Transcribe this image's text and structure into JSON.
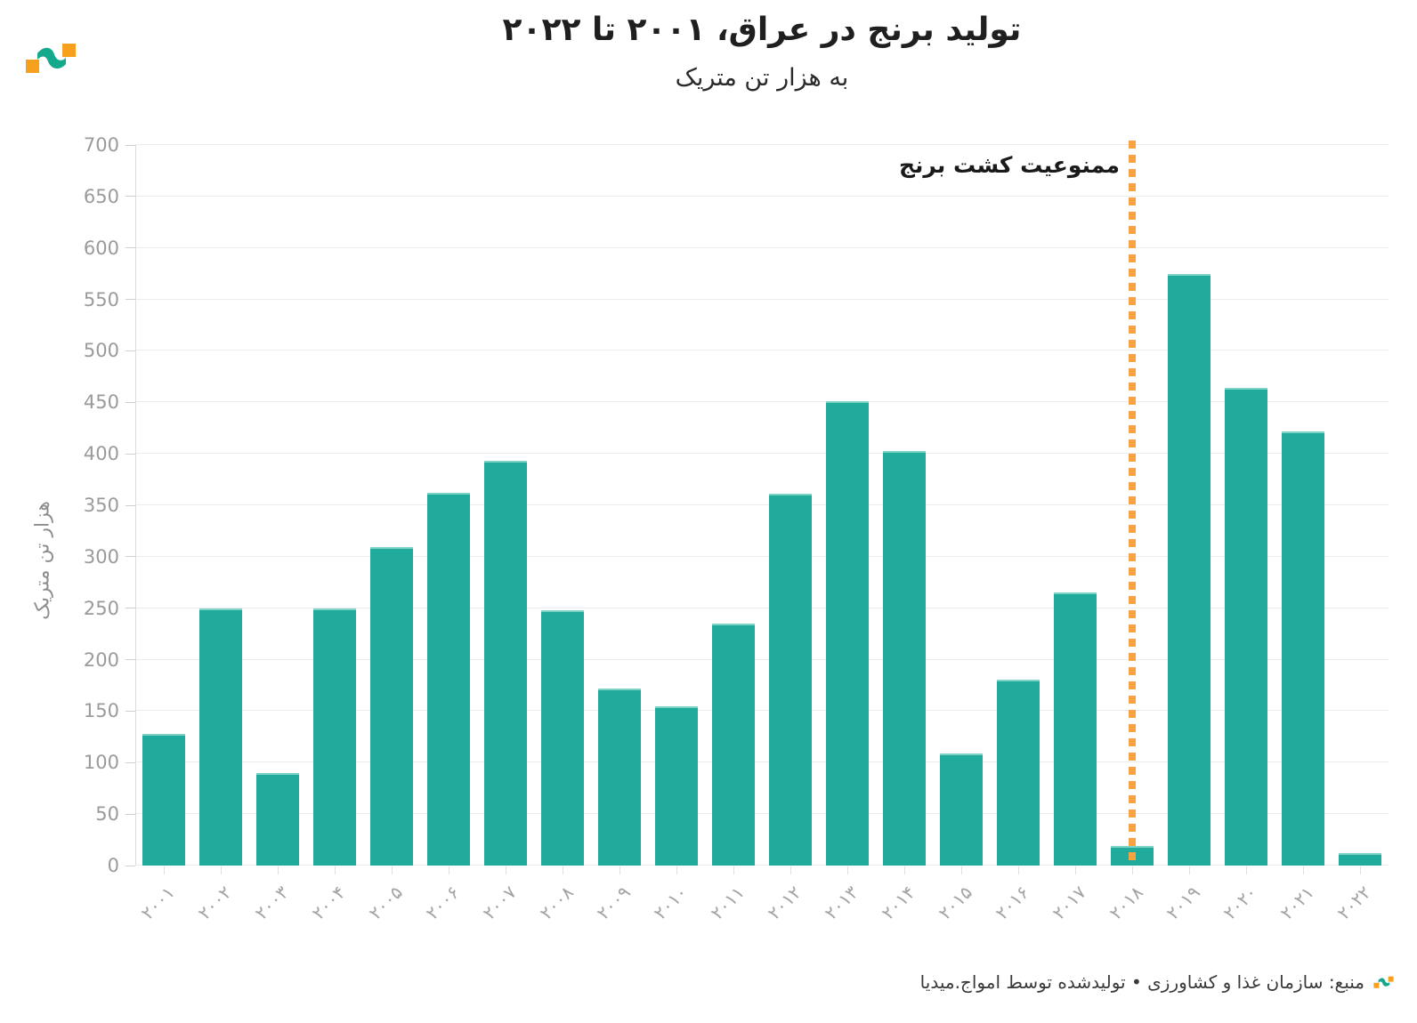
{
  "header": {
    "title": "تولید برنج در عراق، ۲۰۰۱ تا ۲۰۲۲",
    "subtitle": "به هزار تن متریک"
  },
  "footer": {
    "text": "منبع: سازمان غذا و کشاورزی • تولیدشده توسط امواج.میدیا"
  },
  "colors": {
    "bar": "#20ab9d",
    "bar_edge": "#7dd2c6",
    "rule": "#f9a343",
    "grid": "#ececec",
    "axis_line": "#dcdcdc",
    "tick_label": "#9a9a9a",
    "xtick_label": "#a3a3a3",
    "title": "#1f1f1f",
    "annotation": "#1a1a1a",
    "logo_orange": "#f6a01e",
    "logo_green": "#14a88c"
  },
  "chart_data": {
    "type": "bar",
    "title": "تولید برنج در عراق، ۲۰۰۱ تا ۲۰۲۲",
    "subtitle": "به هزار تن متریک",
    "xlabel": "",
    "ylabel": "هزار تن متریک",
    "ylim": [
      0,
      700
    ],
    "ytick_step": 50,
    "grid": true,
    "legend": "none",
    "categories": [
      "۲۰۰۱",
      "۲۰۰۲",
      "۲۰۰۳",
      "۲۰۰۴",
      "۲۰۰۵",
      "۲۰۰۶",
      "۲۰۰۷",
      "۲۰۰۸",
      "۲۰۰۹",
      "۲۰۱۰",
      "۲۰۱۱",
      "۲۰۱۲",
      "۲۰۱۳",
      "۲۰۱۴",
      "۲۰۱۵",
      "۲۰۱۶",
      "۲۰۱۷",
      "۲۰۱۸",
      "۲۰۱۹",
      "۲۰۲۰",
      "۲۰۲۱",
      "۲۰۲۲"
    ],
    "years_western": [
      2001,
      2002,
      2003,
      2004,
      2005,
      2006,
      2007,
      2008,
      2009,
      2010,
      2011,
      2012,
      2013,
      2014,
      2015,
      2016,
      2017,
      2018,
      2019,
      2020,
      2021,
      2022
    ],
    "values": [
      128,
      250,
      90,
      250,
      309,
      362,
      393,
      248,
      172,
      155,
      235,
      361,
      451,
      403,
      109,
      181,
      265,
      19,
      575,
      464,
      422,
      12
    ],
    "annotation": {
      "text": "ممنوعیت کشت برنج",
      "at_category": "۲۰۱۸",
      "at_index": 17
    }
  }
}
